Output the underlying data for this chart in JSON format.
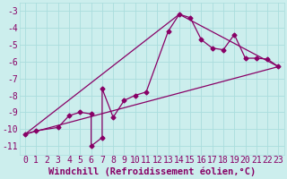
{
  "xlabel": "Windchill (Refroidissement éolien,°C)",
  "bg_color": "#cceeed",
  "grid_color": "#aadddd",
  "line_color": "#880066",
  "xlim": [
    -0.5,
    23.5
  ],
  "ylim": [
    -11.5,
    -2.5
  ],
  "yticks": [
    -3,
    -4,
    -5,
    -6,
    -7,
    -8,
    -9,
    -10,
    -11
  ],
  "xtick_labels": [
    "0",
    "1",
    "2",
    "3",
    "4",
    "5",
    "6",
    "7",
    "8",
    "9",
    "1011",
    "",
    "1314",
    "",
    "1516",
    "",
    "1718",
    "",
    "1920",
    "",
    "2122",
    "",
    "23"
  ],
  "series": [
    [
      0,
      -10.3
    ],
    [
      1,
      -10.1
    ],
    [
      3,
      -9.9
    ],
    [
      4,
      -9.2
    ],
    [
      5,
      -9.0
    ],
    [
      6,
      -9.1
    ],
    [
      6,
      -11.0
    ],
    [
      7,
      -10.5
    ],
    [
      7,
      -7.6
    ],
    [
      8,
      -9.3
    ],
    [
      9,
      -8.3
    ],
    [
      10,
      -8.0
    ],
    [
      11,
      -7.8
    ],
    [
      13,
      -4.2
    ],
    [
      14,
      -3.2
    ],
    [
      15,
      -3.4
    ],
    [
      16,
      -4.7
    ],
    [
      17,
      -5.2
    ],
    [
      18,
      -5.3
    ],
    [
      19,
      -4.4
    ],
    [
      20,
      -5.8
    ],
    [
      21,
      -5.8
    ],
    [
      22,
      -5.85
    ],
    [
      23,
      -6.3
    ]
  ],
  "line_straight": [
    [
      0,
      -10.3
    ],
    [
      23,
      -6.3
    ]
  ],
  "line_peak": [
    [
      0,
      -10.3
    ],
    [
      14,
      -3.2
    ],
    [
      23,
      -6.3
    ]
  ],
  "font_size_xlabel": 7.5,
  "font_size_ticks": 7
}
